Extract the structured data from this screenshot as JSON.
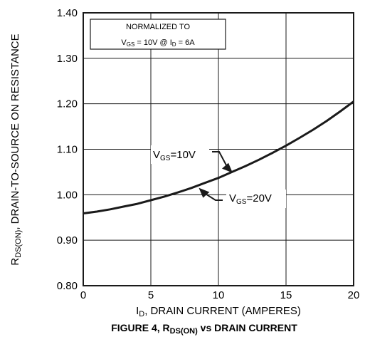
{
  "chart_data": {
    "type": "line",
    "title": "",
    "caption": {
      "prefix": "FIGURE 4, R",
      "subscript": "DS(ON)",
      "suffix": " vs DRAIN CURRENT"
    },
    "xlabel": {
      "prefix": "I",
      "subscript": "D",
      "suffix": ", DRAIN CURRENT (AMPERES)"
    },
    "ylabel": {
      "prefix": "R",
      "subscript": "DS(ON)",
      "suffix": ", DRAIN-TO-SOURCE  ON  RESISTANCE"
    },
    "xlim": [
      0,
      20
    ],
    "ylim": [
      0.8,
      1.4
    ],
    "x_ticks": [
      0,
      5,
      10,
      15,
      20
    ],
    "x_tick_labels": [
      "0",
      "5",
      "10",
      "15",
      "20"
    ],
    "y_ticks": [
      0.8,
      0.9,
      1.0,
      1.1,
      1.2,
      1.3,
      1.4
    ],
    "y_tick_labels": [
      "0.80",
      "0.90",
      "1.00",
      "1.10",
      "1.20",
      "1.30",
      "1.40"
    ],
    "grid": true,
    "series": [
      {
        "x": [
          0,
          1,
          2,
          3,
          4,
          5,
          6,
          7,
          8,
          9,
          10,
          11,
          12,
          13,
          14,
          15,
          16,
          17,
          18,
          19,
          20
        ],
        "y": [
          0.959,
          0.963,
          0.968,
          0.974,
          0.98,
          0.988,
          0.996,
          1.005,
          1.015,
          1.026,
          1.037,
          1.05,
          1.063,
          1.077,
          1.092,
          1.108,
          1.125,
          1.143,
          1.162,
          1.183,
          1.205
        ]
      }
    ],
    "annotations": [
      {
        "id": "vgs10",
        "prefix": "V",
        "subscript": "GS",
        "suffix": "=10V",
        "arrow_to": [
          11,
          1.045
        ]
      },
      {
        "id": "vgs20",
        "prefix": "V",
        "subscript": "GS",
        "suffix": "=20V",
        "arrow_to": [
          8.6,
          1.02
        ]
      }
    ],
    "note_box": {
      "line1": "NORMALIZED TO",
      "line2": {
        "v": "V",
        "v_sub": "GS",
        "middle": " = 10V  @  I",
        "i_sub": "D",
        "tail": " = 6A"
      }
    }
  }
}
